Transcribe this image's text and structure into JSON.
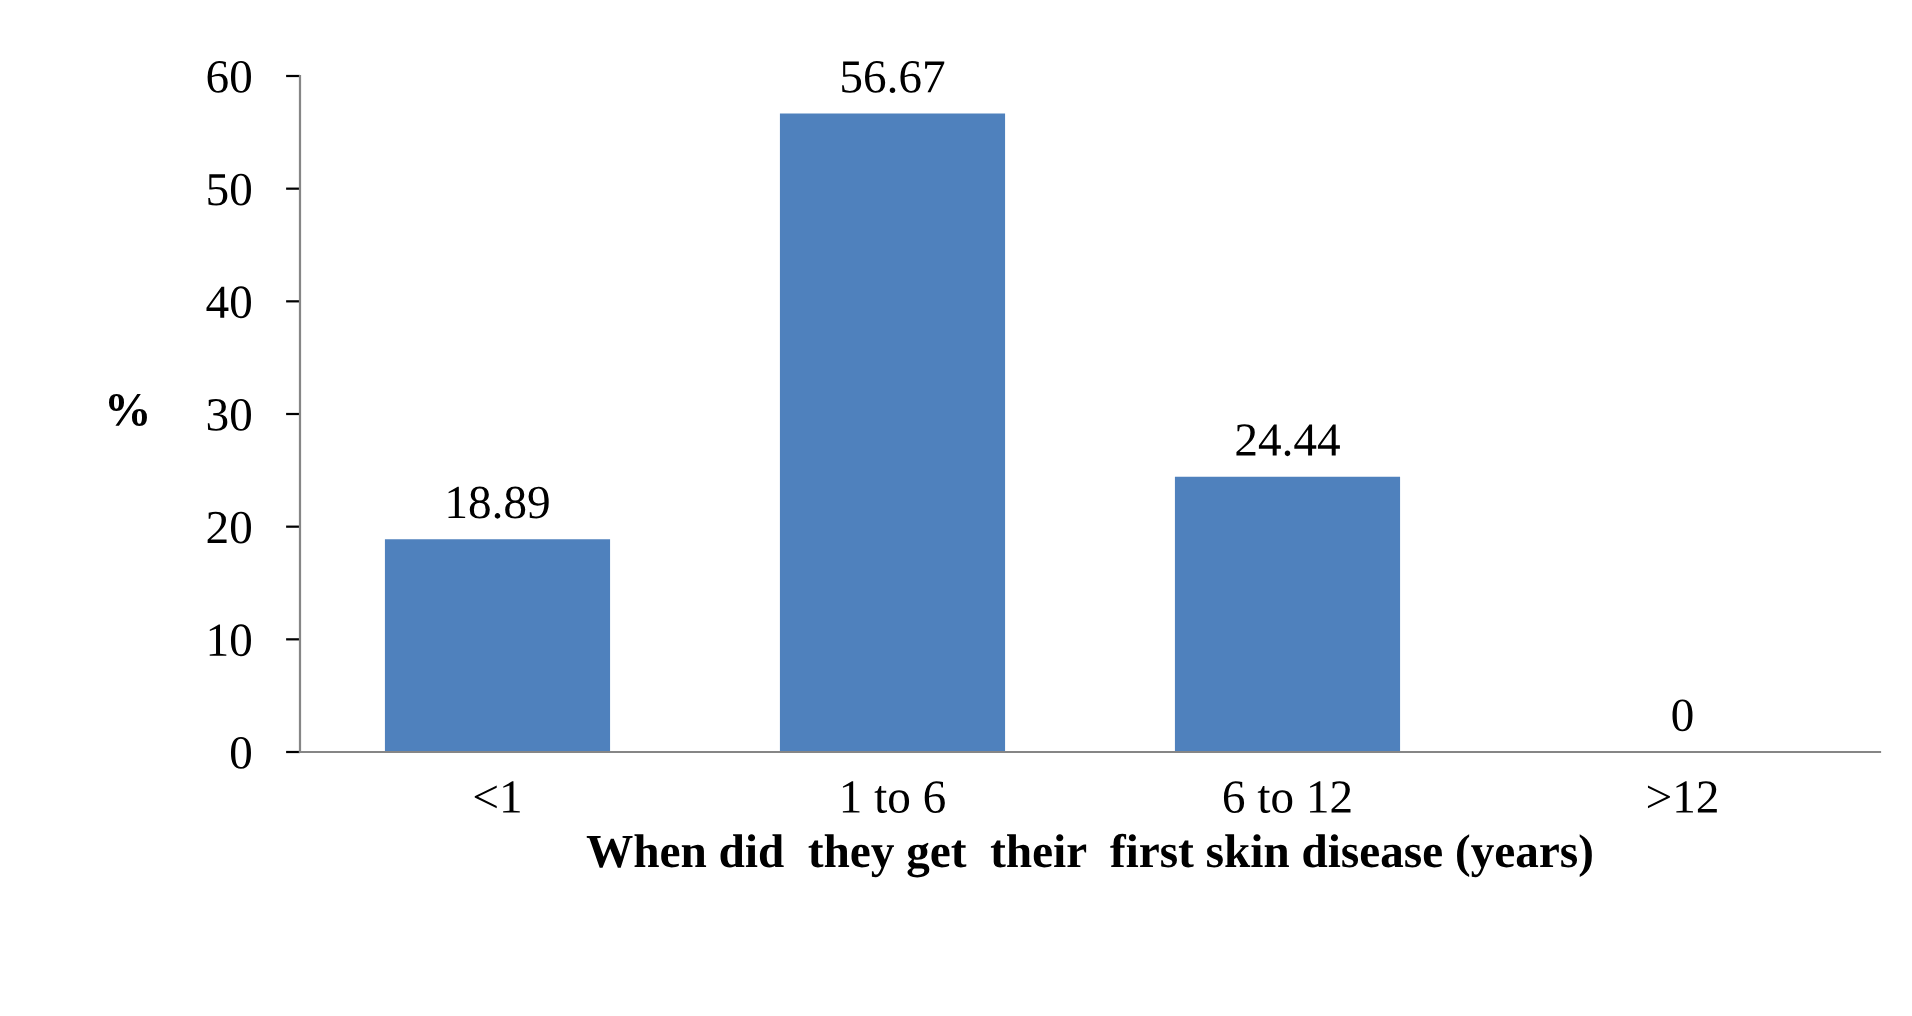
{
  "chart_data": {
    "type": "bar",
    "categories": [
      "<1",
      "1 to 6",
      "6 to 12",
      ">12"
    ],
    "values": [
      18.89,
      56.67,
      24.44,
      0
    ],
    "color": "#4f81bd",
    "ylabel": "%",
    "xlabel": "When did  they get  their  first skin disease (years)",
    "ylim": [
      0,
      60
    ],
    "yticks": [
      0,
      10,
      20,
      30,
      40,
      50,
      60
    ],
    "data_labels": true,
    "grid": false,
    "legend": false
  }
}
